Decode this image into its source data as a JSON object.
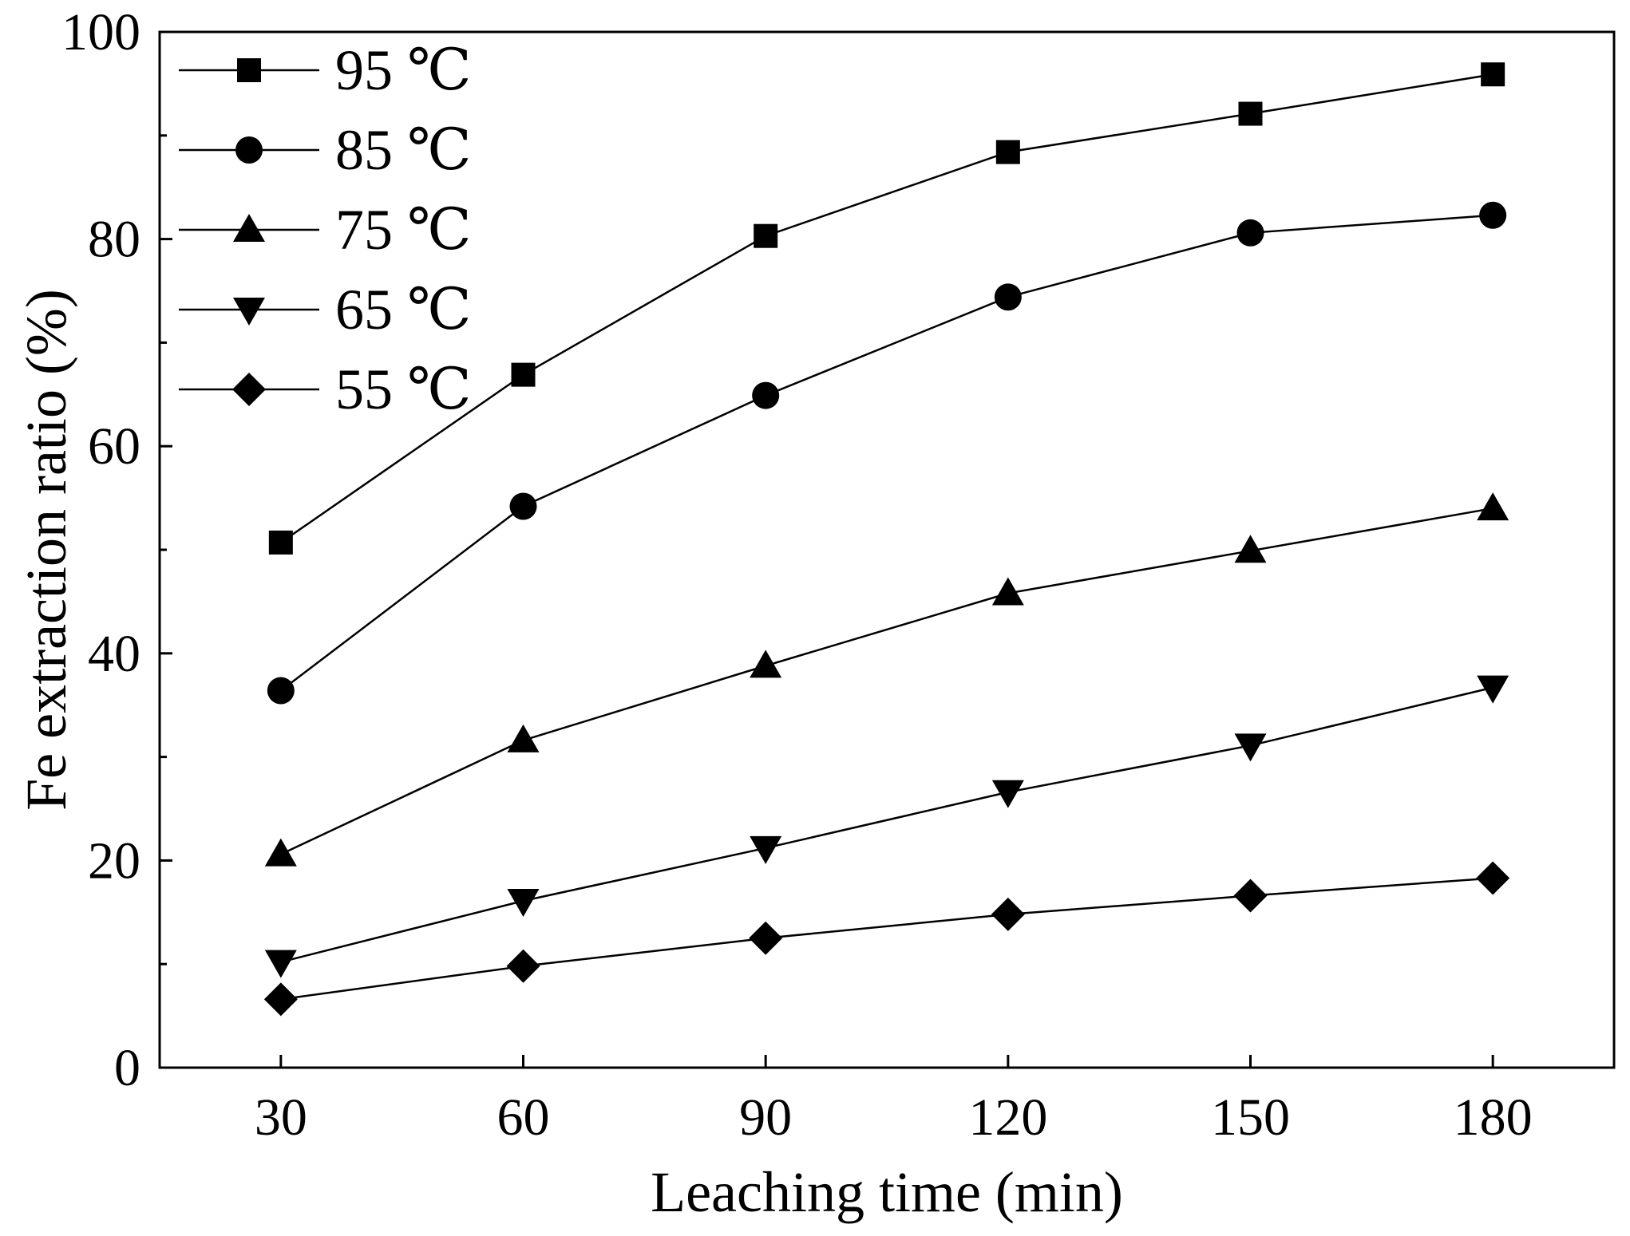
{
  "chart_data": {
    "type": "line",
    "title": "",
    "xlabel": "Leaching time (min)",
    "ylabel": "Fe extraction ratio (%)",
    "x": [
      30,
      60,
      90,
      120,
      150,
      180
    ],
    "xlim": [
      15,
      195
    ],
    "ylim": [
      0,
      100
    ],
    "xticks": [
      30,
      60,
      90,
      120,
      150,
      180
    ],
    "yticks": [
      0,
      20,
      40,
      60,
      80,
      100
    ],
    "grid": false,
    "legend_position": "top-left",
    "series": [
      {
        "name": "95 ℃",
        "marker": "square",
        "values": [
          50.7,
          66.9,
          80.3,
          88.4,
          92.1,
          95.9
        ]
      },
      {
        "name": "85 ℃",
        "marker": "circle",
        "values": [
          36.4,
          54.2,
          64.9,
          74.4,
          80.6,
          82.3
        ]
      },
      {
        "name": "75 ℃",
        "marker": "triangle-up",
        "values": [
          20.6,
          31.6,
          38.8,
          45.8,
          49.9,
          54.0
        ]
      },
      {
        "name": "65 ℃",
        "marker": "triangle-down",
        "values": [
          10.2,
          16.1,
          21.2,
          26.6,
          31.1,
          36.7
        ]
      },
      {
        "name": "55 ℃",
        "marker": "diamond",
        "values": [
          6.6,
          9.8,
          12.5,
          14.8,
          16.6,
          18.3
        ]
      }
    ]
  },
  "colors": {
    "ink": "#000000",
    "background": "#ffffff"
  }
}
